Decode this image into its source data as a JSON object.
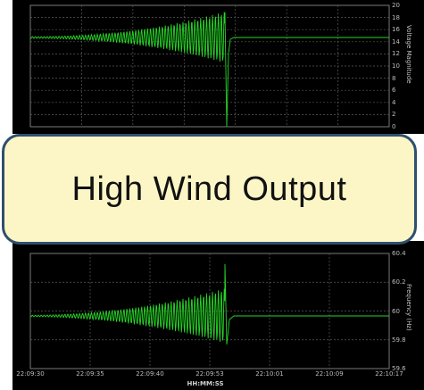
{
  "banner": {
    "text": "High Wind Output"
  },
  "top_plot": {
    "axis_title": "Voltage Magnitude",
    "y_ticks": [
      "20",
      "18",
      "16",
      "14",
      "12",
      "10",
      "8",
      "6",
      "4",
      "2",
      "0"
    ],
    "trace_color": "#27d627",
    "grid_color": "#5a5a5a"
  },
  "bottom_plot": {
    "axis_title": "Frequency (Hz)",
    "y_ticks": [
      "60.4",
      "60.2",
      "60",
      "59.8",
      "59.6"
    ],
    "x_ticks": [
      "22:09:30",
      "22:09:35",
      "22:09:40",
      "22:09:53",
      "22:10:01",
      "22:10:09",
      "22:10:17"
    ],
    "x_label": "HH:MM:SS",
    "trace_color": "#27d627",
    "grid_color": "#5a5a5a"
  }
}
